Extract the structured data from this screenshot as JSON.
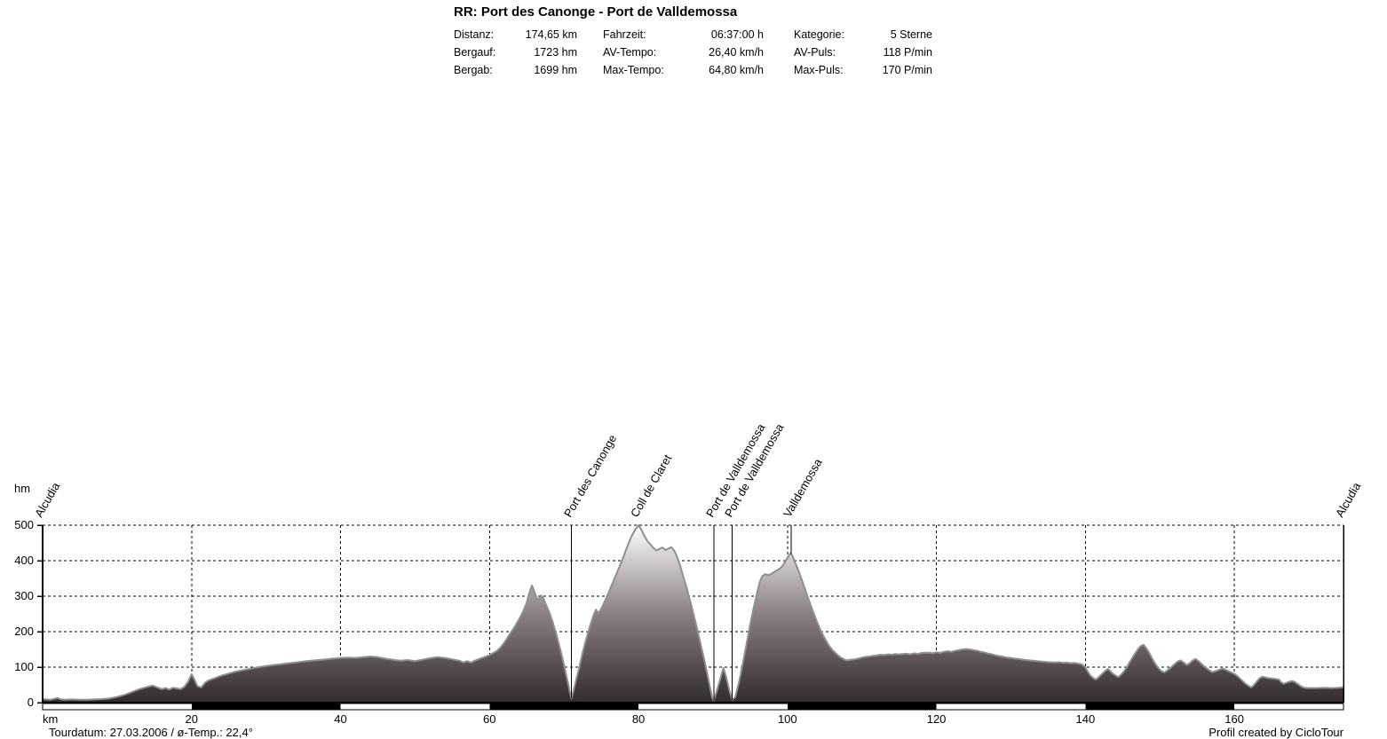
{
  "header": {
    "title": "RR: Port des Canonge - Port de Valldemossa",
    "stats": [
      [
        {
          "label": "Distanz:",
          "value": "174,65 km"
        },
        {
          "label": "Fahrzeit:",
          "value": "06:37:00 h"
        },
        {
          "label": "Kategorie:",
          "value": "5 Sterne"
        }
      ],
      [
        {
          "label": "Bergauf:",
          "value": "1723 hm"
        },
        {
          "label": "AV-Tempo:",
          "value": "26,40 km/h"
        },
        {
          "label": "AV-Puls:",
          "value": "118 P/min"
        }
      ],
      [
        {
          "label": "Bergab:",
          "value": "1699 hm"
        },
        {
          "label": "Max-Tempo:",
          "value": "64,80 km/h"
        },
        {
          "label": "Max-Puls:",
          "value": "170 P/min"
        }
      ]
    ]
  },
  "footer": {
    "left": "Tourdatum: 27.03.2006  /  ø-Temp.: 22,4°",
    "right": "Profil created by CicloTour"
  },
  "chart_data": {
    "type": "area",
    "title": "Elevation profile",
    "xlabel": "km",
    "ylabel": "hm",
    "xlim": [
      0,
      174.65
    ],
    "ylim": [
      0,
      500
    ],
    "xticks": [
      20,
      40,
      60,
      80,
      100,
      120,
      140,
      160
    ],
    "yticks": [
      0,
      100,
      200,
      300,
      400,
      500
    ],
    "grid": "dashed",
    "legend_position": "none",
    "colors": {
      "fill_top": "#fdfdfd",
      "fill_mid": "#8a7f83",
      "fill_bottom": "#322b2f",
      "outline": "#8f8f8f",
      "grid": "#000000",
      "scalebar_black": "#000000",
      "scalebar_white": "#ffffff"
    },
    "markers": [
      {
        "km": 0,
        "label": "Alcudia"
      },
      {
        "km": 71,
        "label": "Port des Canonge"
      },
      {
        "km": 80,
        "label": "Coll de Claret"
      },
      {
        "km": 90.1,
        "label": "Port de Valldemossa"
      },
      {
        "km": 92.6,
        "label": "Port de Valldemossa"
      },
      {
        "km": 100.5,
        "label": "Valldemossa"
      },
      {
        "km": 174.65,
        "label": "Alcudia"
      }
    ],
    "profile": [
      [
        0,
        10
      ],
      [
        1,
        8
      ],
      [
        2,
        13
      ],
      [
        2.5,
        9
      ],
      [
        3,
        8
      ],
      [
        4,
        9
      ],
      [
        5,
        8
      ],
      [
        6,
        8
      ],
      [
        7,
        9
      ],
      [
        8,
        10
      ],
      [
        9,
        12
      ],
      [
        10,
        16
      ],
      [
        11,
        22
      ],
      [
        12,
        30
      ],
      [
        13,
        38
      ],
      [
        14,
        44
      ],
      [
        14.8,
        48
      ],
      [
        15.5,
        42
      ],
      [
        16,
        38
      ],
      [
        16.5,
        41
      ],
      [
        17,
        37
      ],
      [
        17.5,
        42
      ],
      [
        18,
        40
      ],
      [
        18.5,
        38
      ],
      [
        19,
        44
      ],
      [
        19.5,
        58
      ],
      [
        20,
        80
      ],
      [
        20.3,
        68
      ],
      [
        20.8,
        46
      ],
      [
        21.3,
        43
      ],
      [
        21.8,
        56
      ],
      [
        22.3,
        63
      ],
      [
        23,
        68
      ],
      [
        24,
        76
      ],
      [
        25,
        82
      ],
      [
        26,
        88
      ],
      [
        27,
        92
      ],
      [
        28,
        96
      ],
      [
        29,
        100
      ],
      [
        30,
        103
      ],
      [
        31,
        106
      ],
      [
        32,
        108
      ],
      [
        33,
        111
      ],
      [
        34,
        113
      ],
      [
        35,
        116
      ],
      [
        36,
        118
      ],
      [
        37,
        120
      ],
      [
        38,
        122
      ],
      [
        39,
        124
      ],
      [
        40,
        126
      ],
      [
        41,
        127
      ],
      [
        42,
        126
      ],
      [
        43,
        128
      ],
      [
        44,
        130
      ],
      [
        45,
        128
      ],
      [
        46,
        124
      ],
      [
        47,
        121
      ],
      [
        48,
        118
      ],
      [
        49,
        120
      ],
      [
        50,
        117
      ],
      [
        51,
        121
      ],
      [
        52,
        125
      ],
      [
        53,
        128
      ],
      [
        54,
        126
      ],
      [
        55,
        122
      ],
      [
        56,
        118
      ],
      [
        56.5,
        113
      ],
      [
        57,
        117
      ],
      [
        57.5,
        113
      ],
      [
        58,
        118
      ],
      [
        59,
        126
      ],
      [
        60,
        134
      ],
      [
        61,
        146
      ],
      [
        61.5,
        156
      ],
      [
        62,
        170
      ],
      [
        62.5,
        186
      ],
      [
        63,
        202
      ],
      [
        63.5,
        218
      ],
      [
        64,
        236
      ],
      [
        64.5,
        256
      ],
      [
        65,
        282
      ],
      [
        65.3,
        306
      ],
      [
        65.7,
        330
      ],
      [
        66,
        314
      ],
      [
        66.3,
        296
      ],
      [
        66.6,
        290
      ],
      [
        66.9,
        302
      ],
      [
        67.2,
        296
      ],
      [
        67.5,
        280
      ],
      [
        68,
        256
      ],
      [
        68.5,
        226
      ],
      [
        69,
        190
      ],
      [
        69.5,
        150
      ],
      [
        70,
        106
      ],
      [
        70.5,
        58
      ],
      [
        70.8,
        28
      ],
      [
        71,
        12
      ],
      [
        71.3,
        36
      ],
      [
        71.6,
        62
      ],
      [
        72,
        96
      ],
      [
        72.5,
        140
      ],
      [
        73,
        180
      ],
      [
        73.5,
        216
      ],
      [
        74,
        248
      ],
      [
        74.3,
        262
      ],
      [
        74.6,
        252
      ],
      [
        74.9,
        261
      ],
      [
        75.2,
        273
      ],
      [
        75.6,
        291
      ],
      [
        76,
        311
      ],
      [
        76.5,
        336
      ],
      [
        77,
        361
      ],
      [
        77.5,
        386
      ],
      [
        78,
        412
      ],
      [
        78.5,
        440
      ],
      [
        79,
        466
      ],
      [
        79.5,
        486
      ],
      [
        80,
        500
      ],
      [
        80.4,
        487
      ],
      [
        80.8,
        469
      ],
      [
        81.2,
        455
      ],
      [
        81.6,
        446
      ],
      [
        82,
        436
      ],
      [
        82.4,
        429
      ],
      [
        82.8,
        433
      ],
      [
        83.2,
        437
      ],
      [
        83.6,
        430
      ],
      [
        84,
        434
      ],
      [
        84.4,
        438
      ],
      [
        84.8,
        428
      ],
      [
        85.2,
        410
      ],
      [
        85.6,
        386
      ],
      [
        86,
        356
      ],
      [
        86.5,
        321
      ],
      [
        87,
        281
      ],
      [
        87.5,
        240
      ],
      [
        88,
        196
      ],
      [
        88.5,
        150
      ],
      [
        89,
        104
      ],
      [
        89.5,
        54
      ],
      [
        89.9,
        14
      ],
      [
        90.1,
        6
      ],
      [
        90.5,
        32
      ],
      [
        91,
        68
      ],
      [
        91.4,
        98
      ],
      [
        91.8,
        70
      ],
      [
        92.2,
        34
      ],
      [
        92.6,
        8
      ],
      [
        93,
        16
      ],
      [
        93.5,
        58
      ],
      [
        94,
        110
      ],
      [
        94.5,
        165
      ],
      [
        95,
        221
      ],
      [
        95.5,
        271
      ],
      [
        96,
        316
      ],
      [
        96.3,
        341
      ],
      [
        96.6,
        356
      ],
      [
        97,
        362
      ],
      [
        97.5,
        359
      ],
      [
        98,
        365
      ],
      [
        98.5,
        372
      ],
      [
        99,
        378
      ],
      [
        99.3,
        384
      ],
      [
        99.6,
        394
      ],
      [
        100,
        408
      ],
      [
        100.4,
        421
      ],
      [
        100.7,
        413
      ],
      [
        101,
        396
      ],
      [
        101.5,
        371
      ],
      [
        102,
        341
      ],
      [
        102.5,
        311
      ],
      [
        103,
        281
      ],
      [
        103.5,
        253
      ],
      [
        104,
        226
      ],
      [
        104.5,
        201
      ],
      [
        105,
        181
      ],
      [
        105.5,
        163
      ],
      [
        106,
        149
      ],
      [
        106.5,
        139
      ],
      [
        107,
        129
      ],
      [
        107.5,
        123
      ],
      [
        108,
        119
      ],
      [
        108.5,
        121
      ],
      [
        109,
        122
      ],
      [
        109.5,
        124
      ],
      [
        110,
        127
      ],
      [
        110.5,
        129
      ],
      [
        111,
        130
      ],
      [
        111.5,
        132
      ],
      [
        112,
        133
      ],
      [
        112.5,
        135
      ],
      [
        113,
        134
      ],
      [
        113.5,
        136
      ],
      [
        114,
        135
      ],
      [
        114.5,
        137
      ],
      [
        115,
        136
      ],
      [
        116,
        138
      ],
      [
        116.5,
        136
      ],
      [
        117,
        139
      ],
      [
        117.5,
        137
      ],
      [
        118,
        140
      ],
      [
        119,
        141
      ],
      [
        119.5,
        139
      ],
      [
        120,
        142
      ],
      [
        120.5,
        140
      ],
      [
        121,
        143
      ],
      [
        121.5,
        145
      ],
      [
        122,
        143
      ],
      [
        122.5,
        146
      ],
      [
        123,
        148
      ],
      [
        123.5,
        150
      ],
      [
        124,
        151
      ],
      [
        124.5,
        150
      ],
      [
        125,
        148
      ],
      [
        125.5,
        146
      ],
      [
        126,
        143
      ],
      [
        126.5,
        141
      ],
      [
        127,
        138
      ],
      [
        127.5,
        136
      ],
      [
        128,
        133
      ],
      [
        128.5,
        131
      ],
      [
        129,
        129
      ],
      [
        129.5,
        127
      ],
      [
        130,
        126
      ],
      [
        130.5,
        124
      ],
      [
        131,
        123
      ],
      [
        132,
        120
      ],
      [
        132.5,
        119
      ],
      [
        133,
        118
      ],
      [
        134,
        116
      ],
      [
        134.5,
        115
      ],
      [
        135,
        114
      ],
      [
        136,
        113
      ],
      [
        136.5,
        114
      ],
      [
        137,
        112
      ],
      [
        137.5,
        113
      ],
      [
        138,
        111
      ],
      [
        138.5,
        112
      ],
      [
        139,
        110
      ],
      [
        139.5,
        108
      ],
      [
        140,
        100
      ],
      [
        140.3,
        88
      ],
      [
        140.6,
        78
      ],
      [
        141,
        70
      ],
      [
        141.4,
        65
      ],
      [
        141.8,
        72
      ],
      [
        142.2,
        80
      ],
      [
        142.6,
        88
      ],
      [
        143,
        95
      ],
      [
        143.3,
        90
      ],
      [
        143.6,
        83
      ],
      [
        144,
        77
      ],
      [
        144.4,
        72
      ],
      [
        144.8,
        79
      ],
      [
        145.2,
        89
      ],
      [
        145.6,
        101
      ],
      [
        146,
        116
      ],
      [
        146.5,
        133
      ],
      [
        147,
        149
      ],
      [
        147.4,
        159
      ],
      [
        147.8,
        163
      ],
      [
        148.2,
        153
      ],
      [
        148.6,
        139
      ],
      [
        149,
        123
      ],
      [
        149.4,
        109
      ],
      [
        149.8,
        97
      ],
      [
        150.2,
        89
      ],
      [
        150.6,
        85
      ],
      [
        151,
        91
      ],
      [
        151.5,
        99
      ],
      [
        152,
        109
      ],
      [
        152.4,
        116
      ],
      [
        152.8,
        119
      ],
      [
        153.2,
        113
      ],
      [
        153.6,
        106
      ],
      [
        154,
        111
      ],
      [
        154.4,
        119
      ],
      [
        154.8,
        123
      ],
      [
        155.2,
        117
      ],
      [
        155.6,
        109
      ],
      [
        156,
        101
      ],
      [
        156.5,
        93
      ],
      [
        157,
        86
      ],
      [
        157.5,
        89
      ],
      [
        158,
        93
      ],
      [
        158.5,
        96
      ],
      [
        159,
        91
      ],
      [
        159.5,
        86
      ],
      [
        160,
        81
      ],
      [
        160.5,
        73
      ],
      [
        161,
        63
      ],
      [
        161.5,
        53
      ],
      [
        162,
        46
      ],
      [
        162.3,
        43
      ],
      [
        162.6,
        49
      ],
      [
        163,
        59
      ],
      [
        163.4,
        69
      ],
      [
        163.8,
        73
      ],
      [
        164.2,
        71
      ],
      [
        164.6,
        69
      ],
      [
        165,
        68
      ],
      [
        165.5,
        67
      ],
      [
        166,
        65
      ],
      [
        166.3,
        57
      ],
      [
        166.6,
        53
      ],
      [
        167,
        56
      ],
      [
        167.4,
        59
      ],
      [
        167.8,
        61
      ],
      [
        168.2,
        57
      ],
      [
        168.6,
        51
      ],
      [
        169,
        45
      ],
      [
        169.4,
        42
      ],
      [
        170,
        41
      ],
      [
        171,
        41
      ],
      [
        172,
        42
      ],
      [
        173,
        41
      ],
      [
        174,
        42
      ],
      [
        174.65,
        43
      ]
    ]
  }
}
